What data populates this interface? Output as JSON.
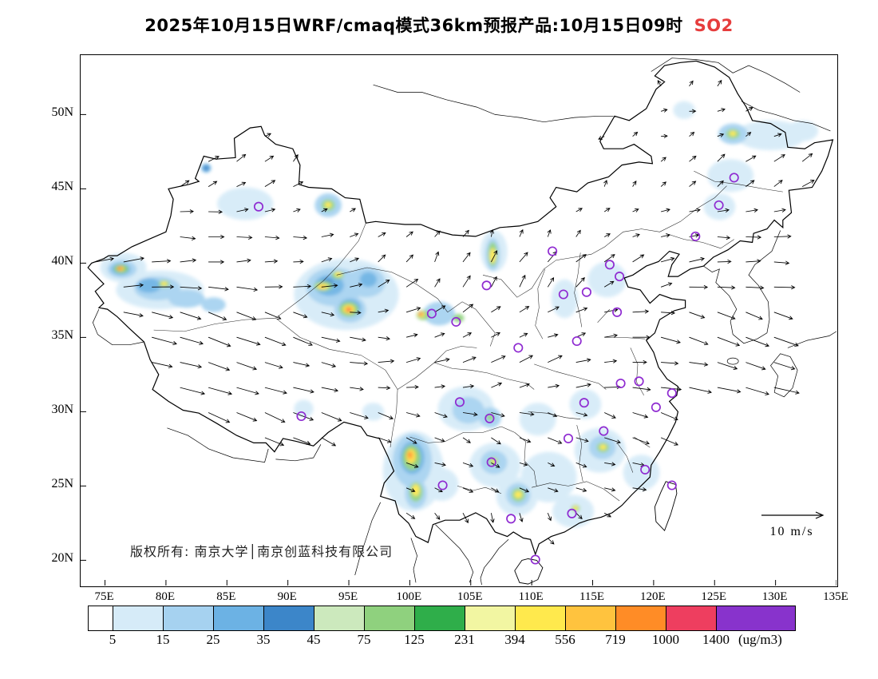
{
  "title": {
    "main": "2025年10月15日WRF/cmaq模式36km预报产品:10月15日09时",
    "species": "SO2"
  },
  "colors": {
    "species_red": "#e63c3c",
    "city_marker": "#8f2bd1",
    "boundary": "#000000"
  },
  "map": {
    "copyright": "版权所有: 南京大学│南京创蓝科技有限公司",
    "wind_legend_label": "10 m/s",
    "lon_range": [
      73.0,
      135.0
    ],
    "lat_range": [
      18.3,
      54.0
    ],
    "lat_ticks": [
      {
        "label": "50N",
        "value": 50
      },
      {
        "label": "45N",
        "value": 45
      },
      {
        "label": "40N",
        "value": 40
      },
      {
        "label": "35N",
        "value": 35
      },
      {
        "label": "30N",
        "value": 30
      },
      {
        "label": "25N",
        "value": 25
      },
      {
        "label": "20N",
        "value": 20
      }
    ],
    "lon_ticks": [
      {
        "label": "75E",
        "value": 75
      },
      {
        "label": "80E",
        "value": 80
      },
      {
        "label": "85E",
        "value": 85
      },
      {
        "label": "90E",
        "value": 90
      },
      {
        "label": "95E",
        "value": 95
      },
      {
        "label": "100E",
        "value": 100
      },
      {
        "label": "105E",
        "value": 105
      },
      {
        "label": "110E",
        "value": 110
      },
      {
        "label": "115E",
        "value": 115
      },
      {
        "label": "120E",
        "value": 120
      },
      {
        "label": "125E",
        "value": 125
      },
      {
        "label": "130E",
        "value": 130
      },
      {
        "label": "135E",
        "value": 135
      }
    ],
    "city_markers": [
      [
        87.6,
        43.8
      ],
      [
        91.1,
        29.7
      ],
      [
        101.8,
        36.6
      ],
      [
        103.8,
        36.05
      ],
      [
        106.3,
        38.5
      ],
      [
        108.9,
        34.3
      ],
      [
        111.7,
        40.8
      ],
      [
        112.6,
        37.9
      ],
      [
        114.5,
        38.05
      ],
      [
        116.4,
        39.9
      ],
      [
        117.2,
        39.1
      ],
      [
        117.0,
        36.7
      ],
      [
        113.7,
        34.75
      ],
      [
        114.3,
        30.6
      ],
      [
        117.3,
        31.9
      ],
      [
        118.8,
        32.05
      ],
      [
        120.2,
        30.3
      ],
      [
        121.5,
        31.25
      ],
      [
        115.9,
        28.7
      ],
      [
        113.0,
        28.2
      ],
      [
        119.3,
        26.1
      ],
      [
        121.5,
        25.05
      ],
      [
        113.3,
        23.15
      ],
      [
        108.3,
        22.8
      ],
      [
        110.3,
        20.05
      ],
      [
        106.7,
        26.6
      ],
      [
        102.7,
        25.05
      ],
      [
        104.1,
        30.65
      ],
      [
        106.55,
        29.55
      ],
      [
        126.6,
        45.75
      ],
      [
        125.35,
        43.9
      ],
      [
        123.43,
        41.8
      ]
    ],
    "so2_plumes": [
      [
        76.5,
        39.7,
        1.9,
        1.0,
        1
      ],
      [
        79.5,
        38.2,
        3.6,
        1.3,
        1
      ],
      [
        86.5,
        44.0,
        2.3,
        1.1,
        1
      ],
      [
        94.8,
        37.9,
        4.3,
        2.4,
        1
      ],
      [
        104.6,
        30.2,
        2.3,
        1.5,
        1
      ],
      [
        100.3,
        26.0,
        2.5,
        2.7,
        1
      ],
      [
        107.0,
        26.4,
        2.1,
        1.5,
        1
      ],
      [
        111.4,
        25.6,
        2.3,
        1.7,
        1
      ],
      [
        115.6,
        27.4,
        2.1,
        1.5,
        1
      ],
      [
        113.4,
        23.3,
        1.7,
        1.1,
        1
      ],
      [
        126.3,
        45.9,
        1.9,
        1.1,
        1
      ],
      [
        129.6,
        48.6,
        2.9,
        1.0,
        1
      ],
      [
        132.2,
        48.9,
        1.3,
        0.7,
        1
      ],
      [
        119.0,
        25.9,
        1.5,
        1.2,
        1
      ],
      [
        106.9,
        40.8,
        1.1,
        1.4,
        1
      ],
      [
        116.2,
        38.9,
        1.6,
        1.2,
        1
      ],
      [
        112.7,
        37.6,
        1.1,
        1.3,
        1
      ],
      [
        108.8,
        24.3,
        1.7,
        1.3,
        1
      ],
      [
        102.6,
        25.1,
        1.4,
        1.1,
        1
      ],
      [
        114.4,
        30.5,
        1.3,
        1.0,
        1
      ],
      [
        125.4,
        43.8,
        1.3,
        0.9,
        1
      ],
      [
        110.5,
        29.5,
        1.5,
        1.1,
        1
      ],
      [
        91.3,
        30.2,
        0.8,
        0.6,
        1
      ],
      [
        97.0,
        30.0,
        0.9,
        0.6,
        1
      ],
      [
        122.5,
        50.3,
        0.9,
        0.6,
        1
      ],
      [
        76.4,
        39.6,
        1.2,
        0.6,
        2
      ],
      [
        79.3,
        38.3,
        1.9,
        0.8,
        2
      ],
      [
        81.7,
        37.6,
        1.5,
        0.6,
        2
      ],
      [
        83.9,
        37.2,
        1.0,
        0.5,
        2
      ],
      [
        93.8,
        38.4,
        2.3,
        1.3,
        2
      ],
      [
        96.4,
        38.7,
        1.6,
        1.0,
        2
      ],
      [
        95.1,
        36.9,
        1.3,
        0.9,
        2
      ],
      [
        102.4,
        36.6,
        1.3,
        0.8,
        2
      ],
      [
        100.2,
        26.7,
        1.6,
        1.8,
        2
      ],
      [
        106.9,
        26.6,
        1.1,
        0.8,
        2
      ],
      [
        108.9,
        24.4,
        1.0,
        0.8,
        2
      ],
      [
        115.8,
        27.6,
        1.1,
        0.8,
        2
      ],
      [
        126.5,
        48.7,
        1.2,
        0.7,
        2
      ],
      [
        104.8,
        30.1,
        1.3,
        0.9,
        2
      ],
      [
        106.6,
        29.6,
        0.9,
        0.7,
        2
      ],
      [
        93.3,
        43.9,
        1.1,
        0.8,
        2
      ],
      [
        106.8,
        40.6,
        0.6,
        1.1,
        2
      ],
      [
        100.5,
        24.5,
        0.9,
        1.0,
        2
      ],
      [
        78.6,
        38.5,
        1.0,
        0.5,
        3
      ],
      [
        93.4,
        38.5,
        1.2,
        0.7,
        3
      ],
      [
        95.1,
        37.0,
        0.9,
        0.6,
        3
      ],
      [
        76.3,
        39.6,
        0.8,
        0.4,
        3
      ],
      [
        100.2,
        26.9,
        1.0,
        1.1,
        3
      ],
      [
        83.3,
        46.4,
        0.4,
        0.3,
        3
      ],
      [
        96.6,
        38.9,
        0.7,
        0.5,
        3
      ],
      [
        83.3,
        46.4,
        0.24,
        0.18,
        4
      ],
      [
        93.2,
        38.6,
        0.55,
        0.35,
        4
      ],
      [
        95.1,
        36.95,
        0.5,
        0.35,
        4
      ],
      [
        76.32,
        39.62,
        0.6,
        0.3,
        6
      ],
      [
        93.3,
        43.9,
        0.55,
        0.38,
        6
      ],
      [
        92.9,
        38.45,
        0.75,
        0.33,
        6
      ],
      [
        94.1,
        39.2,
        0.5,
        0.27,
        6
      ],
      [
        95.0,
        36.9,
        0.8,
        0.5,
        6
      ],
      [
        100.15,
        26.9,
        0.75,
        0.85,
        6
      ],
      [
        100.5,
        24.6,
        0.55,
        0.65,
        6
      ],
      [
        101.1,
        36.5,
        0.55,
        0.33,
        6
      ],
      [
        106.8,
        40.6,
        0.38,
        0.8,
        6
      ],
      [
        108.9,
        24.4,
        0.55,
        0.45,
        6
      ],
      [
        106.85,
        26.65,
        0.38,
        0.28,
        6
      ],
      [
        115.85,
        27.6,
        0.5,
        0.33,
        6
      ],
      [
        126.5,
        48.7,
        0.55,
        0.33,
        6
      ],
      [
        79.85,
        38.6,
        0.45,
        0.25,
        6
      ],
      [
        113.6,
        23.5,
        0.35,
        0.25,
        6
      ],
      [
        104.0,
        36.3,
        0.45,
        0.28,
        6
      ],
      [
        106.6,
        29.62,
        0.33,
        0.22,
        6
      ],
      [
        95.0,
        36.9,
        0.55,
        0.33,
        7
      ],
      [
        100.1,
        27.0,
        0.5,
        0.55,
        7
      ],
      [
        76.3,
        39.62,
        0.42,
        0.22,
        7
      ],
      [
        76.28,
        39.63,
        0.32,
        0.17,
        9
      ],
      [
        93.3,
        43.92,
        0.28,
        0.19,
        9
      ],
      [
        94.15,
        39.25,
        0.3,
        0.16,
        9
      ],
      [
        92.85,
        38.42,
        0.45,
        0.2,
        9
      ],
      [
        95.0,
        36.9,
        0.5,
        0.3,
        9
      ],
      [
        100.1,
        27.0,
        0.42,
        0.5,
        9
      ],
      [
        100.5,
        24.72,
        0.3,
        0.4,
        9
      ],
      [
        100.95,
        36.55,
        0.3,
        0.2,
        9
      ],
      [
        106.8,
        40.5,
        0.24,
        0.5,
        9
      ],
      [
        108.9,
        24.42,
        0.32,
        0.24,
        9
      ],
      [
        115.85,
        27.62,
        0.27,
        0.18,
        9
      ],
      [
        126.5,
        48.72,
        0.28,
        0.17,
        9
      ],
      [
        113.6,
        23.52,
        0.2,
        0.15,
        9
      ],
      [
        79.85,
        38.62,
        0.26,
        0.14,
        9
      ],
      [
        106.9,
        26.67,
        0.2,
        0.14,
        9
      ],
      [
        95.0,
        36.88,
        0.34,
        0.22,
        10
      ],
      [
        100.05,
        27.05,
        0.28,
        0.33,
        10
      ],
      [
        92.8,
        38.42,
        0.24,
        0.12,
        10
      ],
      [
        76.25,
        39.64,
        0.26,
        0.14,
        10
      ],
      [
        95.0,
        36.87,
        0.22,
        0.14,
        11
      ],
      [
        76.23,
        39.64,
        0.17,
        0.1,
        11
      ],
      [
        100.9,
        36.57,
        0.18,
        0.13,
        11
      ],
      [
        100.0,
        27.1,
        0.16,
        0.2,
        11
      ],
      [
        94.98,
        36.86,
        0.12,
        0.08,
        12
      ],
      [
        76.21,
        39.65,
        0.1,
        0.06,
        12
      ],
      [
        100.88,
        36.6,
        0.1,
        0.07,
        12
      ]
    ]
  },
  "colorbar": {
    "tick_labels": [
      "5",
      "15",
      "25",
      "35",
      "45",
      "75",
      "125",
      "231",
      "394",
      "556",
      "719",
      "1000",
      "1400"
    ],
    "unit": "(ug/m3)",
    "colors": [
      "#ffffff",
      "#d6ebf8",
      "#a6d2f0",
      "#6cb2e4",
      "#3c86c9",
      "#cce9bd",
      "#8fd17e",
      "#2fae4a",
      "#f2f6a2",
      "#ffe94d",
      "#ffc33e",
      "#ff8c26",
      "#ee3e5f",
      "#8833cc"
    ]
  }
}
